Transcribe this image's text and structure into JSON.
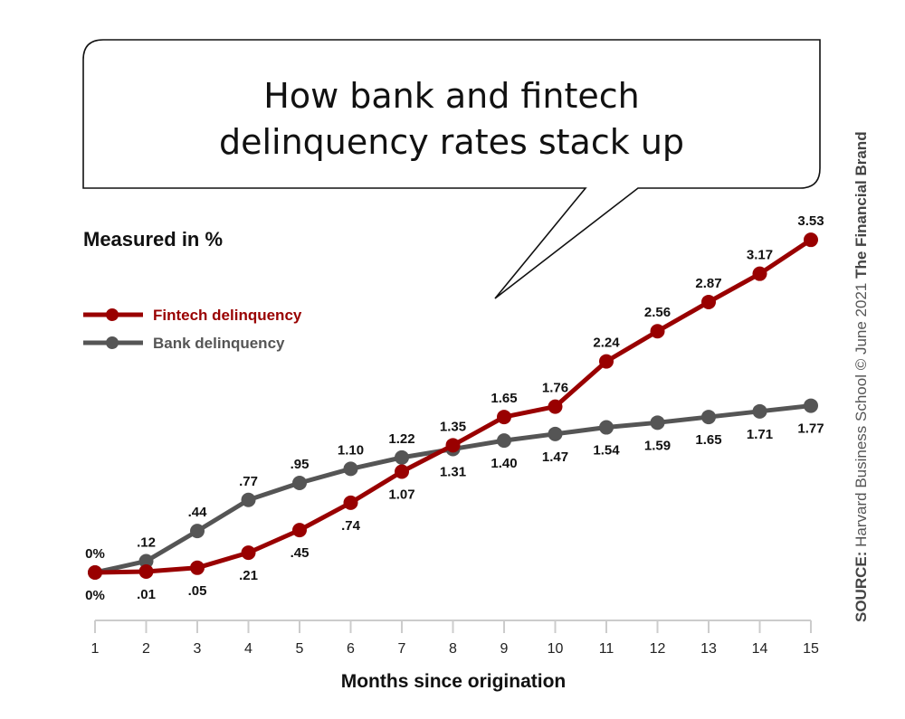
{
  "title": {
    "line1": "How bank and fintech",
    "line2": "delinquency rates stack up"
  },
  "subtitle": "Measured in %",
  "legend": [
    {
      "label": "Fintech delinquency",
      "color": "#990000",
      "series": "fintech"
    },
    {
      "label": "Bank delinquency",
      "color": "#555555",
      "series": "bank"
    }
  ],
  "source": {
    "prefix": "SOURCE:",
    "text": " Harvard Business School © June 2021 ",
    "brand": "The Financial Brand"
  },
  "chart_data": {
    "type": "line",
    "title": "How bank and fintech delinquency rates stack up",
    "subtitle": "Measured in %",
    "xlabel": "Months since origination",
    "ylabel": "",
    "x": [
      1,
      2,
      3,
      4,
      5,
      6,
      7,
      8,
      9,
      10,
      11,
      12,
      13,
      14,
      15
    ],
    "ylim": [
      0,
      3.6
    ],
    "grid": false,
    "legend_position": "upper-left",
    "series": [
      {
        "name": "Fintech delinquency",
        "color": "#990000",
        "values": [
          0,
          0.01,
          0.05,
          0.21,
          0.45,
          0.74,
          1.07,
          1.35,
          1.65,
          1.76,
          2.24,
          2.56,
          2.87,
          3.17,
          3.53
        ],
        "labels": [
          "0%",
          ".01",
          ".05",
          ".21",
          ".45",
          ".74",
          "1.07",
          "1.35",
          "1.65",
          "1.76",
          "2.24",
          "2.56",
          "2.87",
          "3.17",
          "3.53"
        ],
        "label_pos": [
          "below",
          "below",
          "below",
          "below",
          "below",
          "below",
          "below",
          "above",
          "above",
          "above",
          "above",
          "above",
          "above",
          "above",
          "above"
        ]
      },
      {
        "name": "Bank delinquency",
        "color": "#555555",
        "values": [
          0,
          0.12,
          0.44,
          0.77,
          0.95,
          1.1,
          1.22,
          1.31,
          1.4,
          1.47,
          1.54,
          1.59,
          1.65,
          1.71,
          1.77
        ],
        "labels": [
          "0%",
          ".12",
          ".44",
          ".77",
          ".95",
          "1.10",
          "1.22",
          "1.31",
          "1.40",
          "1.47",
          "1.54",
          "1.59",
          "1.65",
          "1.71",
          "1.77"
        ],
        "label_pos": [
          "above",
          "above",
          "above",
          "above",
          "above",
          "above",
          "above",
          "below",
          "below",
          "below",
          "below",
          "below",
          "below",
          "below",
          "below"
        ]
      }
    ]
  }
}
